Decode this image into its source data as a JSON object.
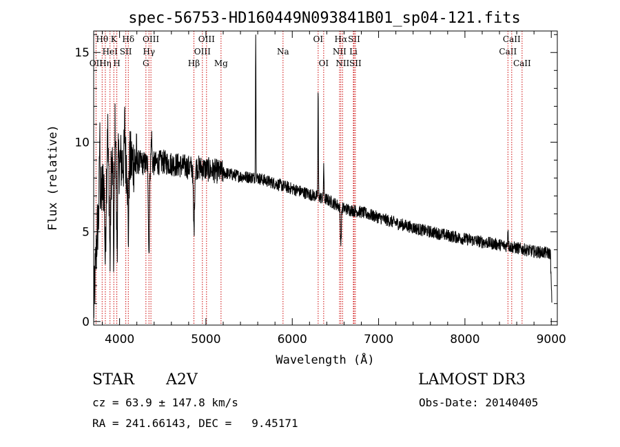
{
  "chart_data": {
    "type": "line",
    "title": "spec-56753-HD160449N093841B01_sp04-121.fits",
    "xlabel": "Wavelength (Å)",
    "ylabel": "Flux (relative)",
    "xlim": [
      3700,
      9070
    ],
    "ylim": [
      -0.2,
      16.2
    ],
    "xticks": [
      4000,
      5000,
      6000,
      7000,
      8000,
      9000
    ],
    "yticks": [
      0,
      5,
      10,
      15
    ],
    "series": [
      {
        "name": "spectrum",
        "anchors": [
          [
            3700,
            0.5
          ],
          [
            3720,
            2.8
          ],
          [
            3740,
            5.0
          ],
          [
            3760,
            6.0
          ],
          [
            3800,
            7.4
          ],
          [
            3850,
            8.2
          ],
          [
            3900,
            8.6
          ],
          [
            4000,
            8.9
          ],
          [
            4100,
            8.9
          ],
          [
            4200,
            8.9
          ],
          [
            4300,
            8.8
          ],
          [
            4400,
            8.8
          ],
          [
            4500,
            8.9
          ],
          [
            4600,
            8.8
          ],
          [
            4700,
            8.7
          ],
          [
            4800,
            8.6
          ],
          [
            4900,
            8.6
          ],
          [
            5000,
            8.5
          ],
          [
            5200,
            8.3
          ],
          [
            5400,
            8.1
          ],
          [
            5600,
            8.0
          ],
          [
            5800,
            7.7
          ],
          [
            6000,
            7.4
          ],
          [
            6200,
            7.1
          ],
          [
            6400,
            6.8
          ],
          [
            6600,
            6.3
          ],
          [
            6800,
            6.1
          ],
          [
            7000,
            5.8
          ],
          [
            7200,
            5.5
          ],
          [
            7500,
            5.1
          ],
          [
            8000,
            4.6
          ],
          [
            8500,
            4.2
          ],
          [
            8800,
            3.9
          ],
          [
            8990,
            3.8
          ],
          [
            9000,
            2.0
          ],
          [
            9010,
            0.6
          ]
        ],
        "features": [
          {
            "center": 3835,
            "depth": -4.5,
            "width": 6
          },
          {
            "center": 3889,
            "depth": -5.0,
            "width": 6
          },
          {
            "center": 3933,
            "depth": -5.5,
            "width": 5
          },
          {
            "center": 3970,
            "depth": -4.5,
            "width": 6
          },
          {
            "center": 4101,
            "depth": -4.0,
            "width": 6
          },
          {
            "center": 4340,
            "depth": -5.0,
            "width": 6
          },
          {
            "center": 4861,
            "depth": -3.5,
            "width": 7
          },
          {
            "center": 6563,
            "depth": -2.0,
            "width": 6
          },
          {
            "center": 3770,
            "depth": 4.0,
            "width": 4
          },
          {
            "center": 3860,
            "depth": 3.0,
            "width": 4
          },
          {
            "center": 3950,
            "depth": 2.5,
            "width": 4
          },
          {
            "center": 4060,
            "depth": 2.0,
            "width": 4
          },
          {
            "center": 4370,
            "depth": 1.5,
            "width": 5
          },
          {
            "center": 5577,
            "depth": 8.5,
            "width": 3
          },
          {
            "center": 6300,
            "depth": 6.0,
            "width": 3
          },
          {
            "center": 6364,
            "depth": 2.0,
            "width": 3
          },
          {
            "center": 8498,
            "depth": 1.0,
            "width": 4
          }
        ],
        "noise": [
          {
            "from": 3700,
            "to": 4200,
            "amp": 1.8
          },
          {
            "from": 4200,
            "to": 5200,
            "amp": 0.7
          },
          {
            "from": 5200,
            "to": 9010,
            "amp": 0.35
          }
        ]
      }
    ],
    "lines": [
      {
        "label": "OII",
        "wl": 3727,
        "row": 3
      },
      {
        "label": "Hθ",
        "wl": 3798,
        "row": 1
      },
      {
        "label": "Hη",
        "wl": 3835,
        "row": 3
      },
      {
        "label": "HeI",
        "wl": 3889,
        "row": 2
      },
      {
        "label": "K",
        "wl": 3933,
        "row": 1
      },
      {
        "label": "H",
        "wl": 3968,
        "row": 3
      },
      {
        "label": "SII",
        "wl": 4072,
        "row": 2
      },
      {
        "label": "Hδ",
        "wl": 4101,
        "row": 1
      },
      {
        "label": "G",
        "wl": 4305,
        "row": 3
      },
      {
        "label": "Hγ",
        "wl": 4340,
        "row": 2
      },
      {
        "label": "OIII",
        "wl": 4363,
        "row": 1
      },
      {
        "label": "Hβ",
        "wl": 4861,
        "row": 3
      },
      {
        "label": "OIII",
        "wl": 4959,
        "row": 2
      },
      {
        "label": "OIII",
        "wl": 5007,
        "row": 1
      },
      {
        "label": "Mg",
        "wl": 5175,
        "row": 3
      },
      {
        "label": "Na",
        "wl": 5893,
        "row": 2
      },
      {
        "label": "OI",
        "wl": 6300,
        "row": 1
      },
      {
        "label": "OI",
        "wl": 6364,
        "row": 3
      },
      {
        "label": "NII",
        "wl": 6548,
        "row": 2
      },
      {
        "label": "Hα",
        "wl": 6563,
        "row": 1
      },
      {
        "label": "NII",
        "wl": 6583,
        "row": 3
      },
      {
        "label": "Li",
        "wl": 6708,
        "row": 2
      },
      {
        "label": "SII",
        "wl": 6716,
        "row": 1
      },
      {
        "label": "SII",
        "wl": 6731,
        "row": 3
      },
      {
        "label": "CaII",
        "wl": 8498,
        "row": 2
      },
      {
        "label": "CaII",
        "wl": 8542,
        "row": 1
      },
      {
        "label": "CaII",
        "wl": 8662,
        "row": 3
      }
    ],
    "colors": {
      "spectrum": "#000000",
      "line_markers": "#cc0000"
    }
  },
  "info": {
    "object_class": "STAR",
    "subclass": "A2V",
    "survey": "LAMOST DR3",
    "cz": "cz = 63.9 ± 147.8 km/s",
    "obs_date": "Obs-Date: 20140405",
    "coords": "RA = 241.66143, DEC =   9.45171"
  }
}
